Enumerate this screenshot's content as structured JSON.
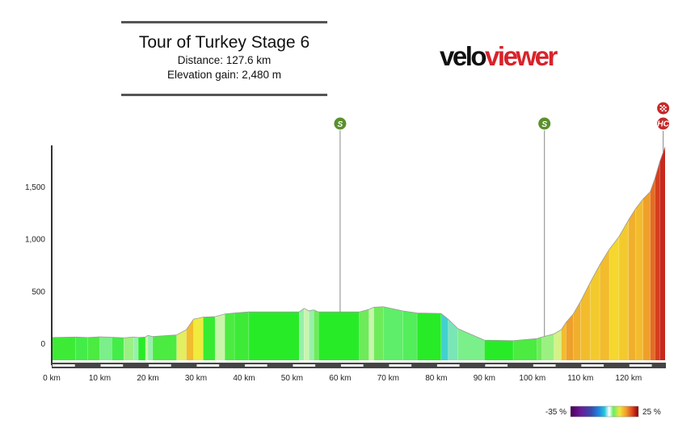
{
  "header": {
    "title": "Tour of Turkey Stage 6",
    "distance": "Distance: 127.6 km",
    "elevation_gain": "Elevation gain: 2,480 m"
  },
  "logo": {
    "part1": "velo",
    "part2": "viewer"
  },
  "colors": {
    "brand_red": "#d8232a",
    "sprint_green": "#5b8f2d",
    "climb_red": "#c62828"
  },
  "chart_data": {
    "type": "area",
    "title": "Tour of Turkey Stage 6",
    "xlabel": "",
    "ylabel": "",
    "xlim": [
      0,
      127.6
    ],
    "ylim": [
      -200,
      1900
    ],
    "yticks": [
      0,
      500,
      1000,
      1500
    ],
    "ytick_labels": [
      "0",
      "500",
      "1,000",
      "1,500"
    ],
    "xticks": [
      0,
      10,
      20,
      30,
      40,
      50,
      60,
      70,
      80,
      90,
      100,
      110,
      120
    ],
    "xtick_labels": [
      "0 km",
      "10 km",
      "20 km",
      "30 km",
      "40 km",
      "50 km",
      "60 km",
      "70 km",
      "80 km",
      "90 km",
      "100 km",
      "110 km",
      "120 km"
    ],
    "grid": false,
    "profile": [
      {
        "x": 0,
        "y": 55,
        "grade": 0.3
      },
      {
        "x": 5,
        "y": 60,
        "grade": -0.5
      },
      {
        "x": 7.5,
        "y": 55,
        "grade": 0.5
      },
      {
        "x": 10,
        "y": 62,
        "grade": -1.5
      },
      {
        "x": 12.5,
        "y": 58,
        "grade": -0.5
      },
      {
        "x": 15,
        "y": 52,
        "grade": 1.5
      },
      {
        "x": 17,
        "y": 60,
        "grade": -2
      },
      {
        "x": 18,
        "y": 55,
        "grade": 0
      },
      {
        "x": 19.5,
        "y": 60,
        "grade": 2
      },
      {
        "x": 20,
        "y": 75,
        "grade": -2
      },
      {
        "x": 21,
        "y": 65,
        "grade": 0.5
      },
      {
        "x": 26,
        "y": 80,
        "grade": 3
      },
      {
        "x": 28,
        "y": 130,
        "grade": 6
      },
      {
        "x": 29.5,
        "y": 230,
        "grade": 3.5
      },
      {
        "x": 31.5,
        "y": 250,
        "grade": 0.2
      },
      {
        "x": 34,
        "y": 255,
        "grade": 2
      },
      {
        "x": 36,
        "y": 280,
        "grade": 0.5
      },
      {
        "x": 38,
        "y": 290,
        "grade": 0.3
      },
      {
        "x": 41,
        "y": 300,
        "grade": 0
      },
      {
        "x": 51.5,
        "y": 300,
        "grade": -2
      },
      {
        "x": 52.5,
        "y": 335,
        "grade": 2
      },
      {
        "x": 53.5,
        "y": 310,
        "grade": -2
      },
      {
        "x": 54.5,
        "y": 320,
        "grade": 1
      },
      {
        "x": 55.5,
        "y": 300,
        "grade": 0
      },
      {
        "x": 64,
        "y": 300,
        "grade": 1
      },
      {
        "x": 66,
        "y": 325,
        "grade": 2
      },
      {
        "x": 67,
        "y": 345,
        "grade": 1
      },
      {
        "x": 69,
        "y": 350,
        "grade": -1
      },
      {
        "x": 73,
        "y": 310,
        "grade": -0.8
      },
      {
        "x": 76,
        "y": 290,
        "grade": 0
      },
      {
        "x": 81,
        "y": 285,
        "grade": -5
      },
      {
        "x": 82.5,
        "y": 230,
        "grade": -3
      },
      {
        "x": 84.5,
        "y": 140,
        "grade": -1.5
      },
      {
        "x": 90,
        "y": 30,
        "grade": 0
      },
      {
        "x": 96,
        "y": 25,
        "grade": 0.5
      },
      {
        "x": 101,
        "y": 45,
        "grade": 1
      },
      {
        "x": 102,
        "y": 60,
        "grade": 1.5
      },
      {
        "x": 104.5,
        "y": 90,
        "grade": 2.5
      },
      {
        "x": 106,
        "y": 130,
        "grade": 6
      },
      {
        "x": 107,
        "y": 200,
        "grade": 7
      },
      {
        "x": 108.5,
        "y": 280,
        "grade": 6.5
      },
      {
        "x": 110,
        "y": 400,
        "grade": 6
      },
      {
        "x": 112,
        "y": 580,
        "grade": 5.5
      },
      {
        "x": 114,
        "y": 750,
        "grade": 6
      },
      {
        "x": 116,
        "y": 900,
        "grade": 5
      },
      {
        "x": 118,
        "y": 1020,
        "grade": 5.5
      },
      {
        "x": 120,
        "y": 1180,
        "grade": 6.5
      },
      {
        "x": 121.5,
        "y": 1290,
        "grade": 6
      },
      {
        "x": 123,
        "y": 1380,
        "grade": 7
      },
      {
        "x": 124.5,
        "y": 1450,
        "grade": 9
      },
      {
        "x": 125.5,
        "y": 1580,
        "grade": 11
      },
      {
        "x": 126.5,
        "y": 1740,
        "grade": 12
      },
      {
        "x": 127.6,
        "y": 1880,
        "grade": 12
      }
    ],
    "markers": [
      {
        "label": "S",
        "x": 60,
        "type": "sprint"
      },
      {
        "label": "S",
        "x": 102.5,
        "type": "sprint"
      },
      {
        "label": "HC",
        "x": 127.2,
        "type": "climb"
      }
    ],
    "legend": {
      "min_label": "-35 %",
      "max_label": "25 %",
      "min": -35,
      "max": 25
    }
  }
}
